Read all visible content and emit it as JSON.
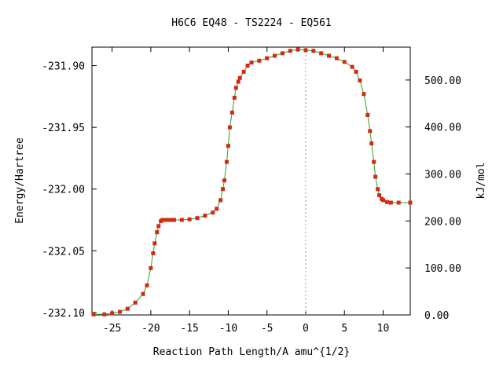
{
  "chart_data": {
    "type": "line",
    "title": "H6C6   EQ48 - TS2224 - EQ561",
    "xlabel": "Reaction Path Length/A amu^{1/2}",
    "ylabel": "Energy/Hartree",
    "y2label": "kJ/mol",
    "xlim": [
      -27.6,
      13.5
    ],
    "ylim": [
      -232.102,
      -231.885
    ],
    "y2lim": [
      0,
      570
    ],
    "xticks": [
      {
        "value": -25,
        "label": "-25"
      },
      {
        "value": -20,
        "label": "-20"
      },
      {
        "value": -15,
        "label": "-15"
      },
      {
        "value": -10,
        "label": "-10"
      },
      {
        "value": -5,
        "label": "-5"
      },
      {
        "value": 0,
        "label": "0"
      },
      {
        "value": 5,
        "label": "5"
      },
      {
        "value": 10,
        "label": "10"
      }
    ],
    "yticks": [
      {
        "value": -232.1,
        "label": "-232.10"
      },
      {
        "value": -232.05,
        "label": "-232.05"
      },
      {
        "value": -232.0,
        "label": "-232.00"
      },
      {
        "value": -231.95,
        "label": "-231.95"
      },
      {
        "value": -231.9,
        "label": "-231.90"
      }
    ],
    "y2ticks": [
      {
        "value": 0,
        "label": "0.00"
      },
      {
        "value": 100,
        "label": "100.00"
      },
      {
        "value": 200,
        "label": "200.00"
      },
      {
        "value": 300,
        "label": "300.00"
      },
      {
        "value": 400,
        "label": "400.00"
      },
      {
        "value": 500,
        "label": "500.00"
      }
    ],
    "ts_marker_x": 0,
    "grid": false,
    "colors": {
      "line": "#2ca02c",
      "marker": "#d42a10",
      "ts_line": "#999999"
    },
    "series": [
      {
        "x": [
          -27.4,
          -26,
          -25,
          -24,
          -23,
          -22,
          -21,
          -20.5,
          -20,
          -19.7,
          -19.5,
          -19.2,
          -19,
          -18.7,
          -18.5,
          -18,
          -17.5,
          -17,
          -16,
          -15,
          -14,
          -13,
          -12,
          -11.5,
          -11,
          -10.7,
          -10.5,
          -10.2,
          -10,
          -9.8,
          -9.5,
          -9.2,
          -9,
          -8.7,
          -8.5,
          -8,
          -7.5,
          -7,
          -6,
          -5,
          -4,
          -3,
          -2,
          -1,
          0,
          1,
          2,
          3,
          4,
          5,
          6,
          6.5,
          7,
          7.5,
          8,
          8.3,
          8.5,
          8.8,
          9,
          9.3,
          9.5,
          9.8,
          10,
          10.5,
          11,
          12,
          13.5
        ],
        "y": [
          -232.1015,
          -232.1015,
          -232.1007,
          -232.0995,
          -232.097,
          -232.092,
          -232.085,
          -232.078,
          -232.064,
          -232.052,
          -232.044,
          -232.035,
          -232.03,
          -232.026,
          -232.025,
          -232.025,
          -232.025,
          -232.025,
          -232.025,
          -232.0245,
          -232.0235,
          -232.0215,
          -232.019,
          -232.016,
          -232.009,
          -232.0,
          -231.993,
          -231.978,
          -231.965,
          -231.95,
          -231.938,
          -231.926,
          -231.918,
          -231.913,
          -231.91,
          -231.905,
          -231.9,
          -231.8975,
          -231.896,
          -231.894,
          -231.892,
          -231.89,
          -231.888,
          -231.887,
          -231.8875,
          -231.888,
          -231.89,
          -231.892,
          -231.894,
          -231.897,
          -231.901,
          -231.905,
          -231.912,
          -231.923,
          -231.94,
          -231.953,
          -231.963,
          -231.978,
          -231.99,
          -232.0,
          -232.005,
          -232.008,
          -232.009,
          -232.0105,
          -232.011,
          -232.011,
          -232.011
        ]
      }
    ]
  }
}
